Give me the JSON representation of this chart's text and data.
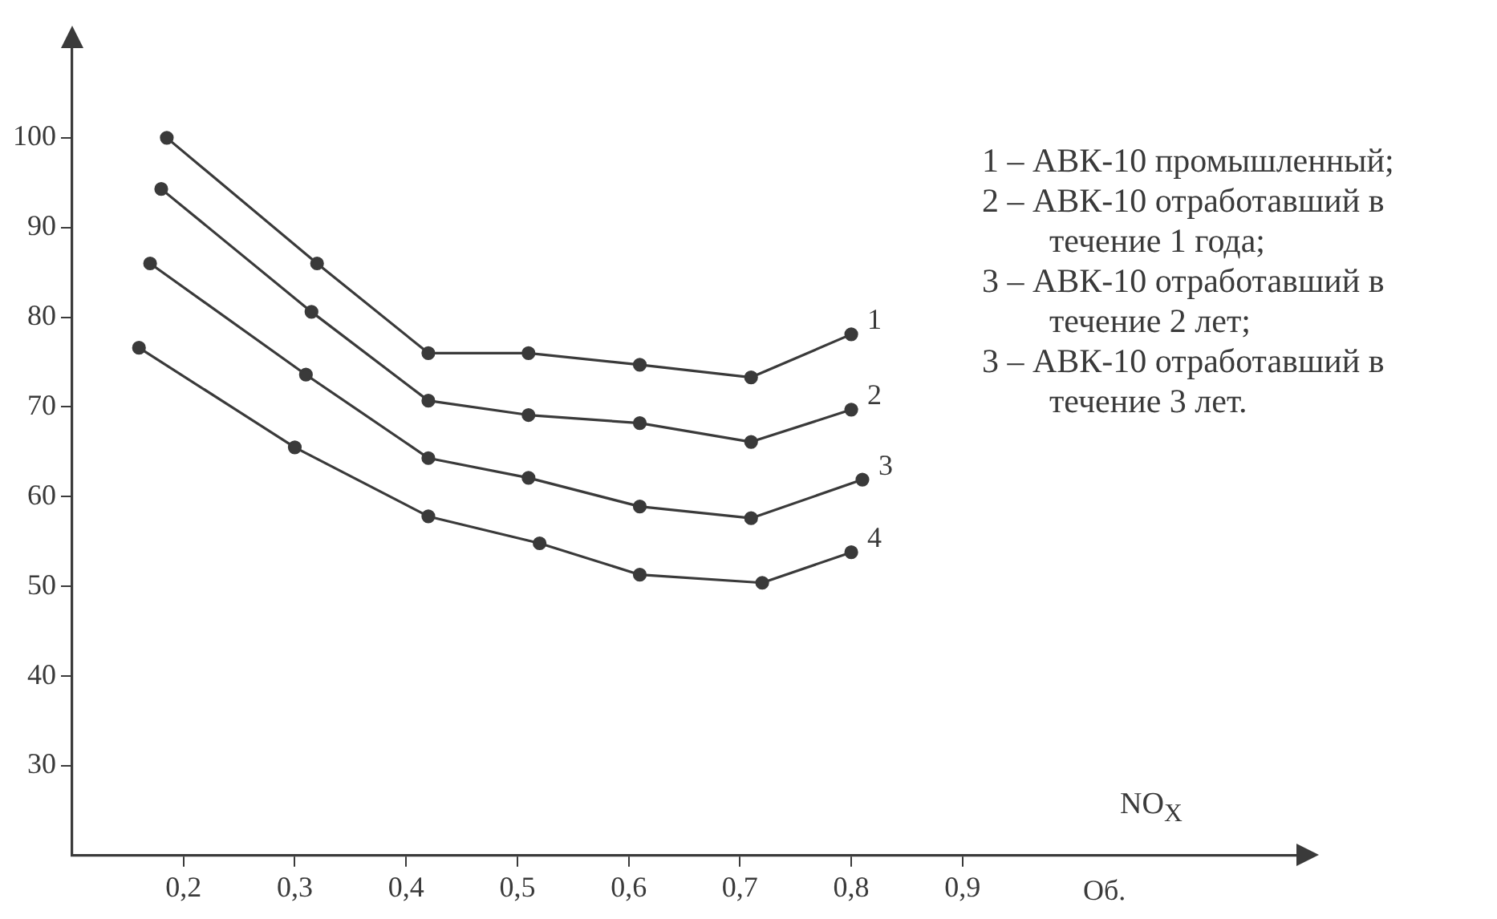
{
  "chart_data": {
    "type": "line",
    "xlabel": "NO$_{X}$",
    "marker": "circle",
    "line_style": "solid",
    "xlim": [
      0.1,
      1.2
    ],
    "ylim": [
      20,
      110
    ],
    "xticks": [
      {
        "value": 0.2,
        "label": "0,2"
      },
      {
        "value": 0.3,
        "label": "0,3"
      },
      {
        "value": 0.4,
        "label": "0,4"
      },
      {
        "value": 0.5,
        "label": "0,5"
      },
      {
        "value": 0.6,
        "label": "0,6"
      },
      {
        "value": 0.7,
        "label": "0,7"
      },
      {
        "value": 0.8,
        "label": "0,8"
      },
      {
        "value": 0.9,
        "label": "0,9"
      }
    ],
    "yticks": [
      30,
      40,
      50,
      60,
      70,
      80,
      90,
      100
    ],
    "series": [
      {
        "name": "1",
        "color": "#3a3a3a",
        "x": [
          0.185,
          0.32,
          0.42,
          0.51,
          0.61,
          0.71,
          0.8
        ],
        "values": [
          100,
          86,
          76,
          76,
          74.7,
          73.3,
          78.1
        ]
      },
      {
        "name": "2",
        "color": "#3a3a3a",
        "x": [
          0.18,
          0.315,
          0.42,
          0.51,
          0.61,
          0.71,
          0.8
        ],
        "values": [
          94.3,
          80.6,
          70.7,
          69.1,
          68.2,
          66.1,
          69.7
        ]
      },
      {
        "name": "3",
        "color": "#3a3a3a",
        "x": [
          0.17,
          0.31,
          0.42,
          0.51,
          0.61,
          0.71,
          0.81
        ],
        "values": [
          86,
          73.6,
          64.3,
          62.1,
          58.9,
          57.6,
          61.9
        ]
      },
      {
        "name": "4",
        "color": "#3a3a3a",
        "x": [
          0.16,
          0.3,
          0.42,
          0.52,
          0.61,
          0.72,
          0.8
        ],
        "values": [
          76.6,
          65.5,
          57.8,
          54.8,
          51.3,
          50.4,
          53.8
        ]
      }
    ],
    "annotations": [
      "1 – АВК-10 промышленный;",
      "2 – АВК-10 отработавший в течение 1 года;",
      "3 – АВК-10 отработавший в течение 2 лет;",
      "3 – АВК-10 отработавший в течение 3 лет.",
      "Об."
    ]
  }
}
